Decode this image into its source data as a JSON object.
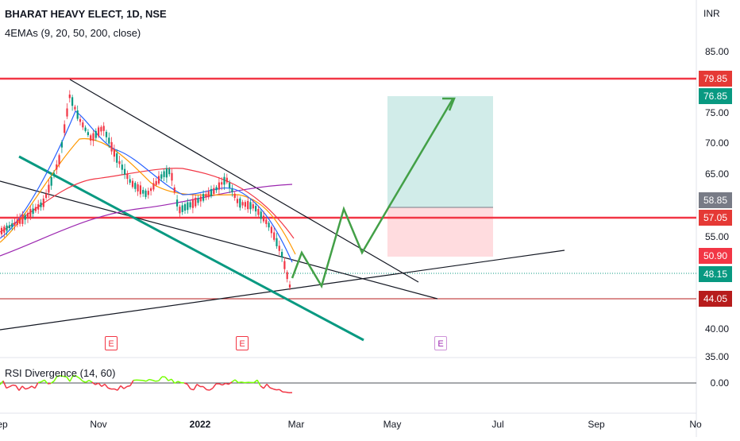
{
  "header": {
    "symbol_line": "BHARAT HEAVY ELECT, 1D, NSE",
    "indicator_line": "4EMAs (9, 20, 50, 200, close)"
  },
  "currency_badge": "INR",
  "rsi_label": "RSI Divergence (14, 60)",
  "price_axis": [
    "85.00",
    "75.00",
    "70.00",
    "65.00",
    "55.00",
    "40.00",
    "35.00"
  ],
  "price_tags": [
    {
      "value": "79.85",
      "color": "#e53935"
    },
    {
      "value": "76.85",
      "color": "#089981"
    },
    {
      "value": "58.85",
      "color": "#787b86"
    },
    {
      "value": "57.05",
      "color": "#e53935"
    },
    {
      "value": "50.90",
      "color": "#f23645"
    },
    {
      "value": "48.15",
      "color": "#089981"
    },
    {
      "value": "44.05",
      "color": "#b71c1c"
    }
  ],
  "rsi_axis": "0.00",
  "time_axis": [
    "ep",
    "Nov",
    "2022",
    "Mar",
    "May",
    "Jul",
    "Sep",
    "No"
  ],
  "earnings_marker": "E",
  "colors": {
    "resistance": "#f23645",
    "support_line": "#089981",
    "projection": "#43a047",
    "target_zone": "#b2dfdb",
    "stop_zone": "#ffcdd2"
  }
}
